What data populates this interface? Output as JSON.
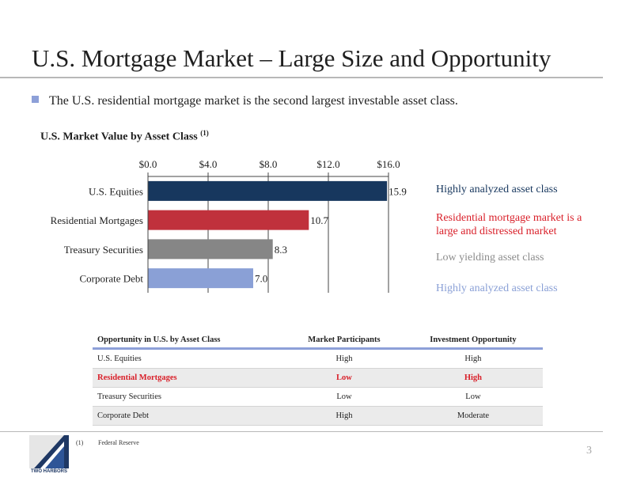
{
  "title": "U.S. Mortgage Market – Large Size and Opportunity",
  "bullet": "The U.S. residential mortgage market is the second largest investable asset class.",
  "chart_title": "U.S. Market Value by Asset Class",
  "chart_title_note": "(1)",
  "chart_data": {
    "type": "bar",
    "orientation": "horizontal",
    "title": "U.S. Market Value by Asset Class",
    "categories": [
      "U.S. Equities",
      "Residential Mortgages",
      "Treasury Securities",
      "Corporate Debt"
    ],
    "values": [
      15.9,
      10.7,
      8.3,
      7.0
    ],
    "value_labels": [
      "15.9",
      "10.7",
      "8.3",
      "7.0"
    ],
    "xlim": [
      0,
      16
    ],
    "ticks": [
      0,
      4,
      8,
      12,
      16
    ],
    "tick_labels": [
      "$0.0",
      "$4.0",
      "$8.0",
      "$12.0",
      "$16.0"
    ],
    "axis_position": "top",
    "grid": true,
    "colors": [
      "#17375e",
      "#c0313c",
      "#868686",
      "#8aa0d6"
    ]
  },
  "annotations": [
    {
      "text": "Highly analyzed asset class",
      "color": "#17375e"
    },
    {
      "text": "Residential mortgage market is a",
      "text2": "large and distressed market",
      "color": "#d9202a"
    },
    {
      "text": "Low yielding asset class",
      "color": "#8c8c8c"
    },
    {
      "text": "Highly analyzed asset class",
      "color": "#8aa0d6"
    }
  ],
  "table": {
    "headers": [
      "Opportunity in U.S. by Asset Class",
      "Market Participants",
      "Investment Opportunity"
    ],
    "rows": [
      [
        "U.S. Equities",
        "High",
        "High"
      ],
      [
        "Residential Mortgages",
        "Low",
        "High"
      ],
      [
        "Treasury Securities",
        "Low",
        "Low"
      ],
      [
        "Corporate Debt",
        "High",
        "Moderate"
      ]
    ]
  },
  "footnote": {
    "num": "(1)",
    "text": "Federal Reserve"
  },
  "logo_text": "TWO HARBORS",
  "page_number": "3"
}
